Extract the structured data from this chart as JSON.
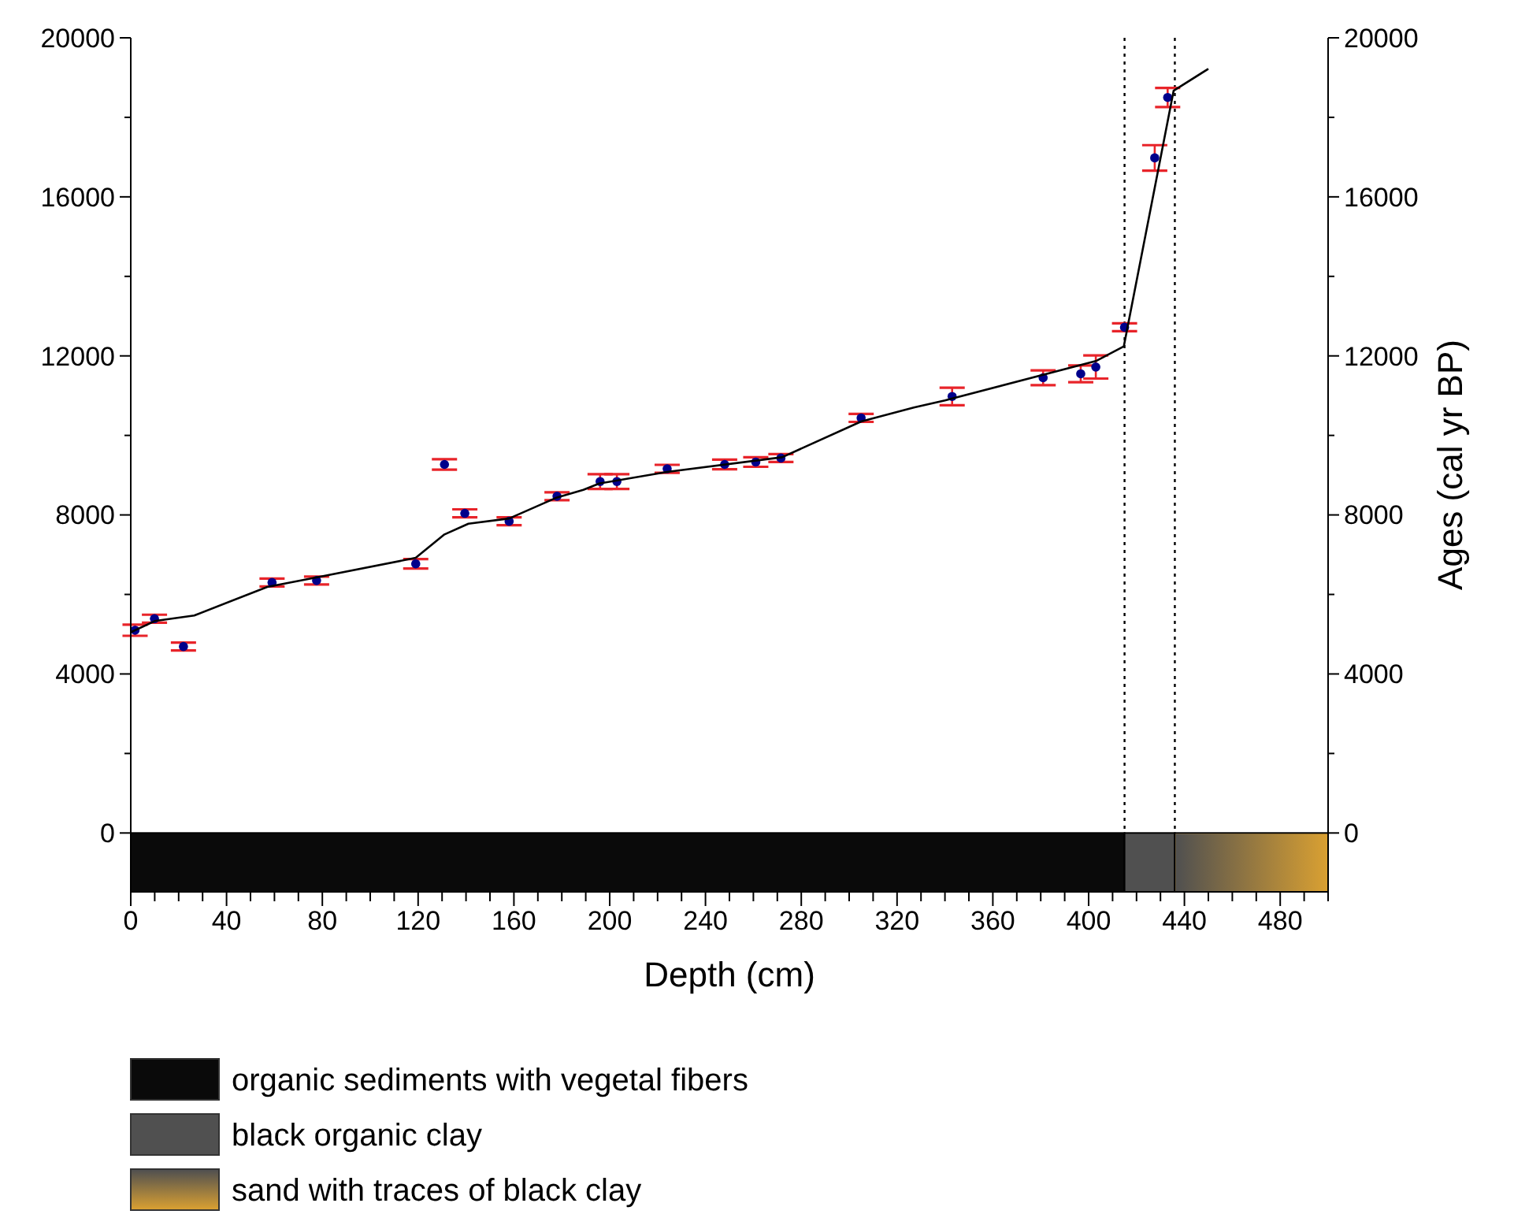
{
  "chart_data": {
    "type": "scatter",
    "xlabel": "Depth (cm)",
    "y2label": "Ages (cal yr BP)",
    "xlim": [
      0,
      500
    ],
    "xticks": [
      0,
      {
        "value": 10,
        "label": null
      },
      {
        "value": 20,
        "label": null
      },
      {
        "value": 30,
        "label": null
      },
      40,
      {
        "value": 50,
        "label": null
      },
      {
        "value": 60,
        "label": null
      },
      {
        "value": 70,
        "label": null
      },
      80,
      {
        "value": 90,
        "label": null
      },
      {
        "value": 100,
        "label": null
      },
      {
        "value": 110,
        "label": null
      },
      120,
      {
        "value": 130,
        "label": null
      },
      {
        "value": 140,
        "label": null
      },
      {
        "value": 150,
        "label": null
      },
      160,
      {
        "value": 170,
        "label": null
      },
      {
        "value": 180,
        "label": null
      },
      {
        "value": 190,
        "label": null
      },
      200,
      {
        "value": 210,
        "label": null
      },
      {
        "value": 220,
        "label": null
      },
      {
        "value": 230,
        "label": null
      },
      240,
      {
        "value": 250,
        "label": null
      },
      {
        "value": 260,
        "label": null
      },
      {
        "value": 270,
        "label": null
      },
      280,
      {
        "value": 290,
        "label": null
      },
      {
        "value": 300,
        "label": null
      },
      {
        "value": 310,
        "label": null
      },
      320,
      {
        "value": 330,
        "label": null
      },
      {
        "value": 340,
        "label": null
      },
      {
        "value": 350,
        "label": null
      },
      360,
      {
        "value": 370,
        "label": null
      },
      {
        "value": 380,
        "label": null
      },
      {
        "value": 390,
        "label": null
      },
      400,
      {
        "value": 410,
        "label": null
      },
      {
        "value": 420,
        "label": null
      },
      {
        "value": 430,
        "label": null
      },
      440,
      {
        "value": 450,
        "label": null
      },
      {
        "value": 460,
        "label": null
      },
      {
        "value": 470,
        "label": null
      },
      480,
      {
        "value": 490,
        "label": null
      },
      {
        "value": 500,
        "label": null
      }
    ],
    "ylim": [
      -1480,
      20000
    ],
    "yticks": [
      0,
      {
        "value": 2000,
        "label": null
      },
      4000,
      {
        "value": 6000,
        "label": null
      },
      8000,
      {
        "value": 10000,
        "label": null
      },
      12000,
      {
        "value": 14000,
        "label": null
      },
      16000,
      {
        "value": 18000,
        "label": null
      },
      20000
    ],
    "y2lim": [
      -1480,
      20000
    ],
    "y2ticks": [
      0,
      {
        "value": 2000,
        "label": null
      },
      4000,
      {
        "value": 6000,
        "label": null
      },
      8000,
      {
        "value": 10000,
        "label": null
      },
      12000,
      {
        "value": 14000,
        "label": null
      },
      16000,
      {
        "value": 18000,
        "label": null
      },
      20000
    ],
    "grid": false,
    "legend": "bottom",
    "marker": "circle",
    "series": [
      {
        "color": "#00008b",
        "x": [
          1.8,
          9.9,
          22,
          59,
          77.6,
          119,
          131,
          139.5,
          158,
          178,
          196,
          203,
          224,
          248,
          261,
          271.5,
          305,
          343,
          381,
          396.7,
          403,
          415,
          427.6,
          433
        ],
        "values": [
          5100,
          5390,
          4690,
          6300,
          6350,
          6770,
          9270,
          8040,
          7840,
          8470,
          8840,
          8840,
          9160,
          9270,
          9330,
          9430,
          10440,
          10980,
          11450,
          11550,
          11720,
          12720,
          16980,
          18500
        ],
        "errors": [
          140,
          100,
          100,
          100,
          100,
          120,
          130,
          100,
          100,
          100,
          185,
          185,
          100,
          120,
          120,
          100,
          100,
          220,
          185,
          210,
          290,
          100,
          320,
          240
        ]
      },
      {
        "type": "line",
        "color": "#000000",
        "marker": "none",
        "line_style": "solid",
        "x": [
          0,
          10,
          26.5,
          57,
          77,
          119,
          131,
          141,
          158,
          178,
          189,
          195.6,
          224,
          272,
          305,
          327,
          340,
          403,
          414.7,
          435.5,
          450
        ],
        "values": [
          5050,
          5330,
          5470,
          6190,
          6420,
          6920,
          7510,
          7780,
          7910,
          8440,
          8630,
          8790,
          9080,
          9450,
          10350,
          10700,
          10880,
          11870,
          12240,
          18670,
          19220
        ]
      }
    ],
    "ref_lines": [
      {
        "axis": "x",
        "value": 415,
        "line_style": "dotted",
        "color": "#000000"
      },
      {
        "axis": "x",
        "value": 436,
        "line_style": "dotted",
        "color": "#000000"
      }
    ],
    "bands": [
      {
        "axis": "x",
        "from": 0,
        "to": 415,
        "label": "organic sediments with vegetal fibers",
        "color": "#0a0a0a"
      },
      {
        "axis": "x",
        "from": 415,
        "to": 436,
        "label": "black organic clay",
        "color": "#505050"
      },
      {
        "axis": "x",
        "from": 436,
        "to": 500,
        "label": "sand with traces of black clay",
        "color": "#d9a032"
      }
    ]
  }
}
